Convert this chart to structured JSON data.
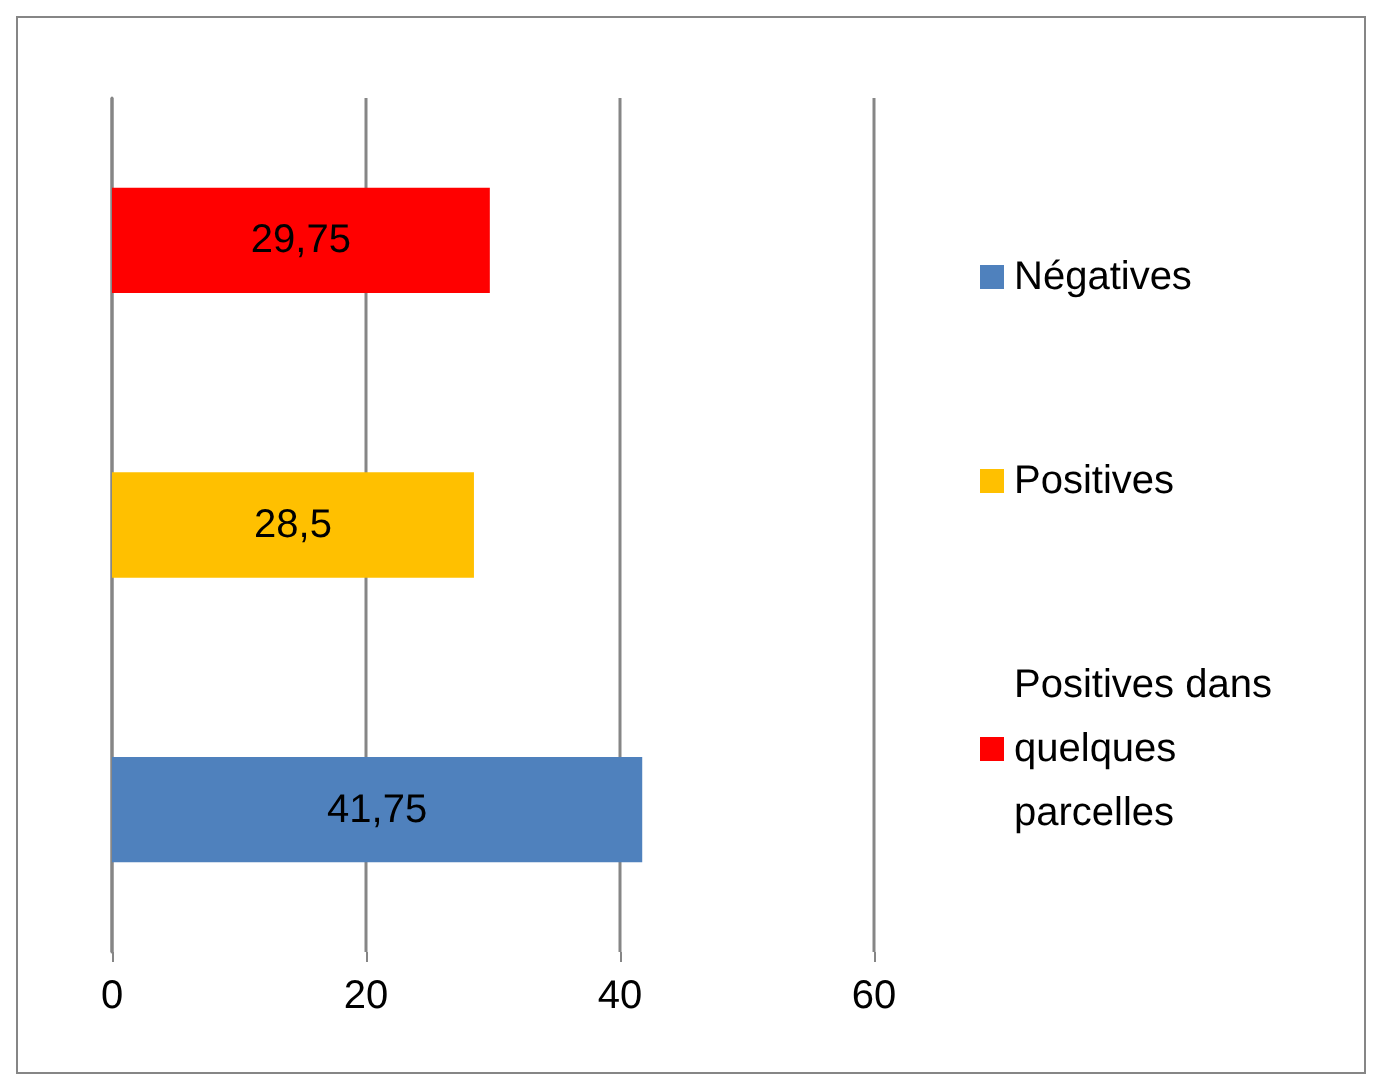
{
  "chart_data": {
    "type": "bar",
    "orientation": "horizontal",
    "categories": [
      null,
      null,
      null
    ],
    "series": [
      {
        "name": "Négatives",
        "color": "#4f81bd",
        "values": [
          null,
          null,
          41.75
        ],
        "value_labels": [
          null,
          null,
          "41,75"
        ]
      },
      {
        "name": "Positives",
        "color": "#ffc000",
        "values": [
          null,
          28.5,
          null
        ],
        "value_labels": [
          null,
          "28,5",
          null
        ]
      },
      {
        "name": "Positives dans quelques parcelles",
        "color": "#ff0000",
        "values": [
          29.75,
          null,
          null
        ],
        "value_labels": [
          "29,75",
          null,
          null
        ]
      }
    ],
    "xlim": [
      0,
      60
    ],
    "xticks": [
      0,
      20,
      40,
      60
    ],
    "grid": "x",
    "legend": "right"
  }
}
